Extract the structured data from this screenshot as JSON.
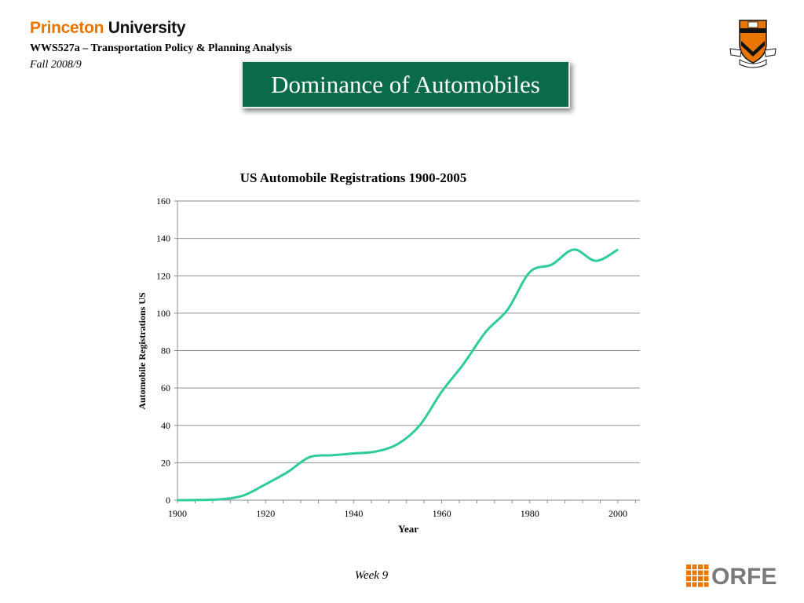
{
  "header": {
    "brand_princeton": "Princeton",
    "brand_university": "University",
    "course": "WWS527a – Transportation Policy & Planning Analysis",
    "term": "Fall 2008/9",
    "logo_icon": "princeton-shield-icon"
  },
  "slide": {
    "title": "Dominance of Automobiles"
  },
  "chart_data": {
    "type": "line",
    "title": "US Automobile Registrations 1900-2005",
    "xlabel": "Year",
    "ylabel": "Automobile Registrations US",
    "xlim": [
      1900,
      2005
    ],
    "ylim": [
      0,
      160
    ],
    "x_ticks": [
      1900,
      1920,
      1940,
      1960,
      1980,
      2000
    ],
    "y_ticks": [
      0,
      20,
      40,
      60,
      80,
      100,
      120,
      140,
      160
    ],
    "grid": "horizontal",
    "legend": "none",
    "series": [
      {
        "color": "#2ecc9a",
        "x": [
          1900,
          1905,
          1910,
          1915,
          1920,
          1925,
          1930,
          1935,
          1940,
          1945,
          1950,
          1955,
          1960,
          1965,
          1970,
          1975,
          1980,
          1985,
          1990,
          1995,
          2000
        ],
        "y": [
          0,
          0.1,
          0.5,
          2.5,
          8.5,
          15,
          23,
          24,
          25,
          26,
          30,
          40,
          58,
          73,
          90,
          102,
          122,
          126,
          134,
          128,
          134
        ]
      }
    ]
  },
  "footer": {
    "week": "Week 9",
    "orfe_label": "ORFE",
    "orfe_color": "#e77500"
  }
}
